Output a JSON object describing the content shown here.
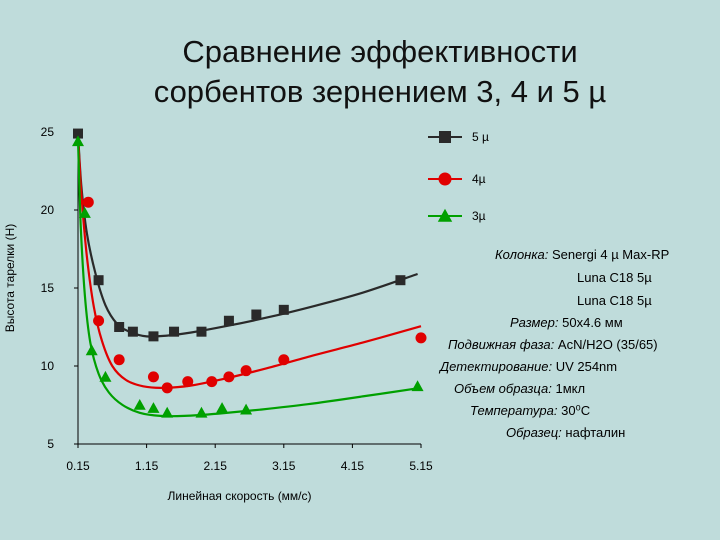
{
  "title_line1": "Сравнение эффективности",
  "title_line2": "сорбентов зернением 3, 4 и 5 µ",
  "chart_data": {
    "type": "scatter",
    "xlabel": "Линейная скорость (мм/с)",
    "ylabel": "Высота тарелки (H)",
    "x_ticks": [
      "0.15",
      "1.15",
      "2.15",
      "3.15",
      "4.15",
      "5.15"
    ],
    "y_ticks": [
      "5",
      "10",
      "15",
      "20",
      "25"
    ],
    "xlim": [
      0.15,
      5.15
    ],
    "ylim": [
      5,
      25
    ],
    "series": [
      {
        "name": "5 µ",
        "marker": "square",
        "color": "#2a2a2a",
        "points": [
          [
            0.15,
            24.9
          ],
          [
            0.45,
            15.5
          ],
          [
            0.75,
            12.5
          ],
          [
            0.95,
            12.2
          ],
          [
            1.25,
            11.9
          ],
          [
            1.55,
            12.2
          ],
          [
            1.95,
            12.2
          ],
          [
            2.35,
            12.9
          ],
          [
            2.75,
            13.3
          ],
          [
            3.15,
            13.6
          ],
          [
            4.85,
            15.5
          ]
        ],
        "curve": [
          [
            0.15,
            24.9
          ],
          [
            0.2,
            21.5
          ],
          [
            0.28,
            18.5
          ],
          [
            0.4,
            16.0
          ],
          [
            0.55,
            13.9
          ],
          [
            0.72,
            12.7
          ],
          [
            0.9,
            12.2
          ],
          [
            1.15,
            11.9
          ],
          [
            1.45,
            11.95
          ],
          [
            1.8,
            12.15
          ],
          [
            2.3,
            12.55
          ],
          [
            2.9,
            13.1
          ],
          [
            3.6,
            13.85
          ],
          [
            4.3,
            14.7
          ],
          [
            5.1,
            15.9
          ]
        ]
      },
      {
        "name": "4µ",
        "marker": "circle",
        "color": "#e00000",
        "points": [
          [
            0.3,
            20.5
          ],
          [
            0.45,
            12.9
          ],
          [
            0.75,
            10.4
          ],
          [
            1.25,
            9.3
          ],
          [
            1.45,
            8.6
          ],
          [
            1.75,
            9.0
          ],
          [
            2.1,
            9.0
          ],
          [
            2.35,
            9.3
          ],
          [
            2.6,
            9.7
          ],
          [
            3.15,
            10.4
          ],
          [
            5.15,
            11.8
          ]
        ],
        "curve": [
          [
            0.15,
            24.8
          ],
          [
            0.2,
            21.0
          ],
          [
            0.28,
            17.0
          ],
          [
            0.38,
            13.8
          ],
          [
            0.5,
            11.6
          ],
          [
            0.65,
            10.0
          ],
          [
            0.85,
            9.1
          ],
          [
            1.1,
            8.7
          ],
          [
            1.4,
            8.6
          ],
          [
            1.8,
            8.75
          ],
          [
            2.3,
            9.2
          ],
          [
            2.9,
            9.85
          ],
          [
            3.6,
            10.7
          ],
          [
            4.3,
            11.5
          ],
          [
            5.15,
            12.55
          ]
        ]
      },
      {
        "name": "3µ",
        "marker": "triangle",
        "color": "#00a000",
        "points": [
          [
            0.15,
            24.4
          ],
          [
            0.25,
            19.8
          ],
          [
            0.35,
            11.0
          ],
          [
            0.55,
            9.3
          ],
          [
            1.05,
            7.5
          ],
          [
            1.25,
            7.3
          ],
          [
            1.45,
            7.0
          ],
          [
            1.95,
            7.0
          ],
          [
            2.25,
            7.3
          ],
          [
            2.6,
            7.2
          ],
          [
            5.1,
            8.7
          ]
        ],
        "curve": [
          [
            0.15,
            24.5
          ],
          [
            0.19,
            19.0
          ],
          [
            0.25,
            14.5
          ],
          [
            0.33,
            11.5
          ],
          [
            0.45,
            9.5
          ],
          [
            0.6,
            8.3
          ],
          [
            0.8,
            7.5
          ],
          [
            1.05,
            7.0
          ],
          [
            1.35,
            6.8
          ],
          [
            1.7,
            6.8
          ],
          [
            2.2,
            6.95
          ],
          [
            2.8,
            7.2
          ],
          [
            3.5,
            7.55
          ],
          [
            4.3,
            8.05
          ],
          [
            5.15,
            8.6
          ]
        ]
      }
    ]
  },
  "conditions": [
    {
      "key": "Колонка:",
      "value": "Senergi 4 µ Max-RP"
    },
    {
      "key": "",
      "value": "Luna C18 5µ"
    },
    {
      "key": "",
      "value": "Luna C18 5µ"
    },
    {
      "key": "Размер:",
      "value": "50x4.6 мм"
    },
    {
      "key": "Подвижная фаза:",
      "value": "AcN/H2O (35/65)"
    },
    {
      "key": "Детектирование:",
      "value": "UV 254nm"
    },
    {
      "key": "Объем образца:",
      "value": "1мкл"
    },
    {
      "key": "Температура:",
      "value": "30⁰C"
    },
    {
      "key": "Образец:",
      "value": "нафталин"
    }
  ]
}
